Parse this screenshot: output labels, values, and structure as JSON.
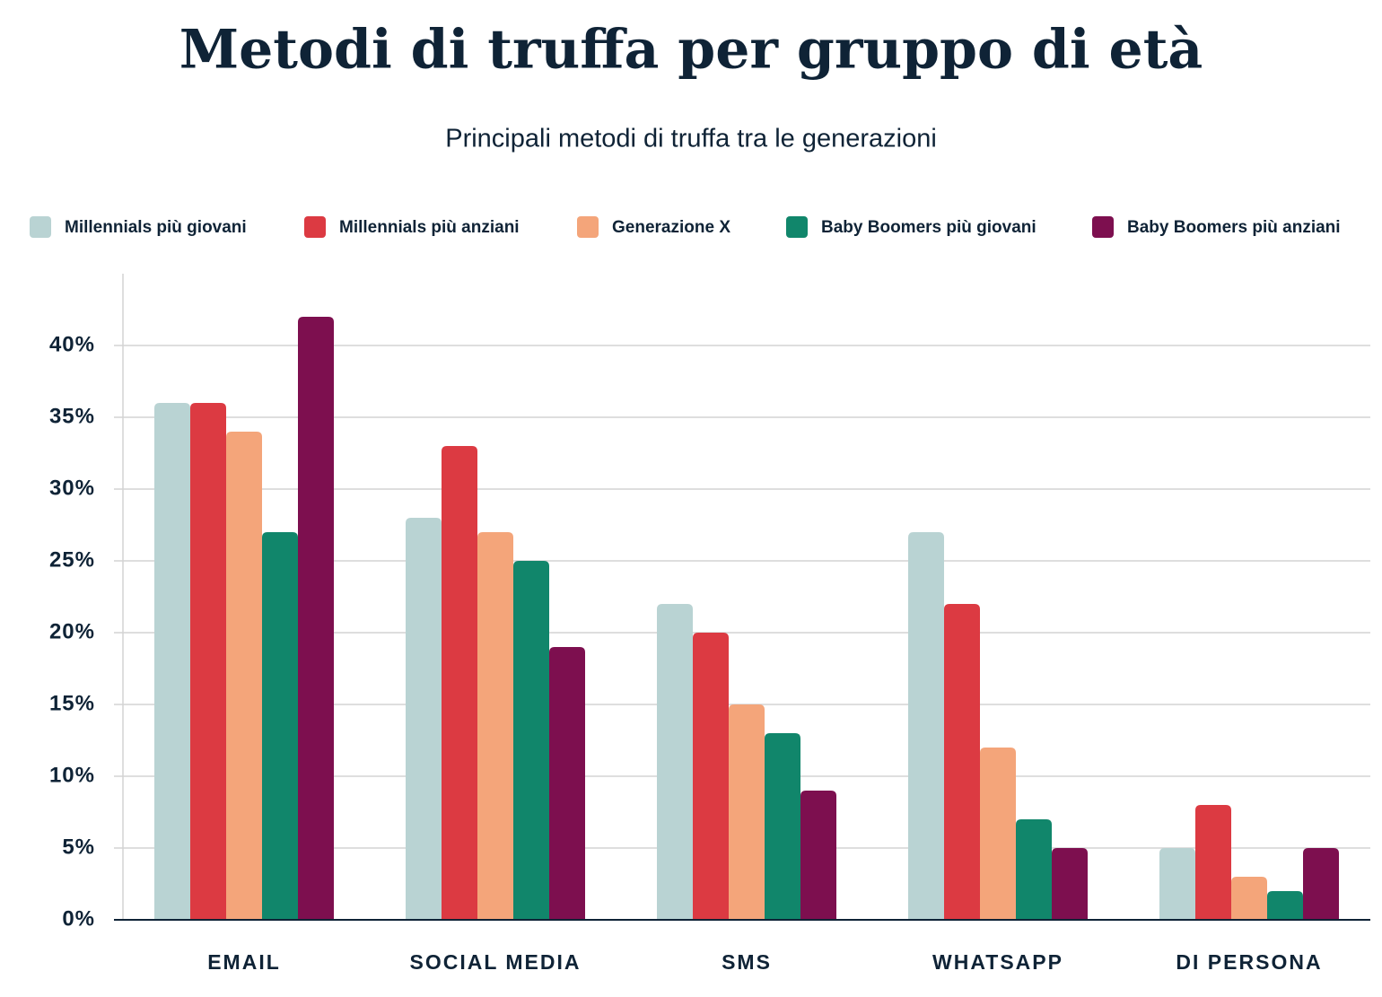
{
  "chart_data": {
    "type": "bar",
    "title": "Metodi di truffa per gruppo di età",
    "subtitle": "Principali metodi di truffa tra le generazioni",
    "categories": [
      "EMAIL",
      "SOCIAL MEDIA",
      "SMS",
      "WHATSAPP",
      "DI PERSONA"
    ],
    "series": [
      {
        "name": "Millennials più giovani",
        "color": "#b9d3d3",
        "values": [
          36,
          28,
          22,
          27,
          5
        ]
      },
      {
        "name": "Millennials più anziani",
        "color": "#dc3a42",
        "values": [
          36,
          33,
          20,
          22,
          8
        ]
      },
      {
        "name": "Generazione X",
        "color": "#f4a57a",
        "values": [
          34,
          27,
          15,
          12,
          3
        ]
      },
      {
        "name": "Baby Boomers più giovani",
        "color": "#11866b",
        "values": [
          27,
          25,
          13,
          7,
          2
        ]
      },
      {
        "name": "Baby Boomers più anziani",
        "color": "#7d0f4f",
        "values": [
          42,
          19,
          9,
          5,
          5
        ]
      }
    ],
    "ylim": [
      0,
      45
    ],
    "yticks": [
      {
        "value": 0,
        "label": "0%"
      },
      {
        "value": 5,
        "label": "5%"
      },
      {
        "value": 10,
        "label": "10%"
      },
      {
        "value": 15,
        "label": "15%"
      },
      {
        "value": 20,
        "label": "20%"
      },
      {
        "value": 25,
        "label": "25%"
      },
      {
        "value": 30,
        "label": "30%"
      },
      {
        "value": 35,
        "label": "35%"
      },
      {
        "value": 40,
        "label": "40%"
      }
    ],
    "grid": true
  }
}
